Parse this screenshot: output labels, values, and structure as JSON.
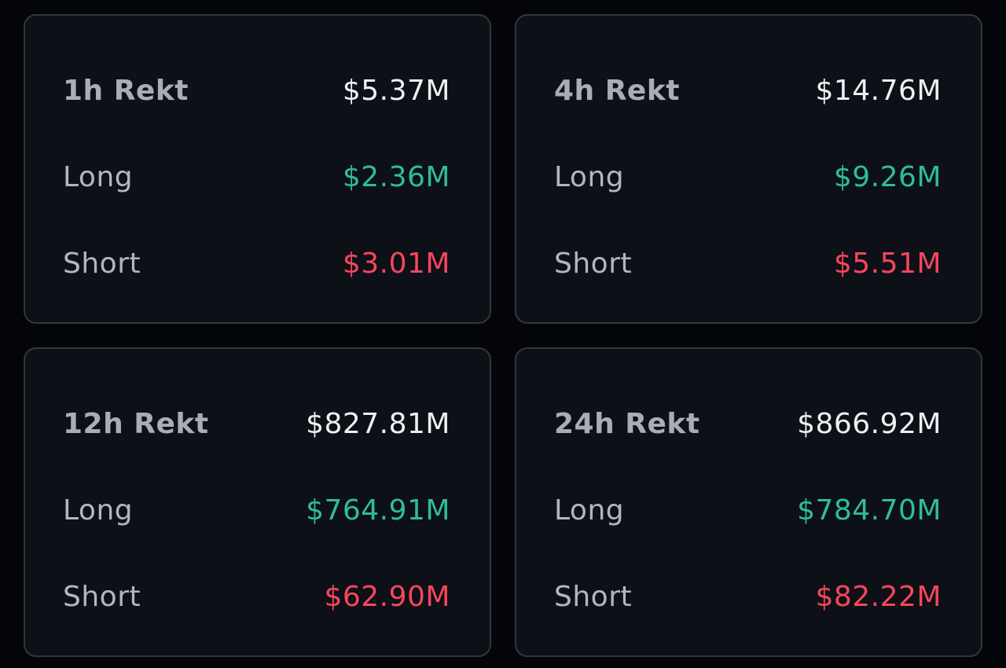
{
  "colors": {
    "background": "#040509",
    "card": "#0d1016",
    "border": "#33363d",
    "label": "#b3b6bd",
    "total": "#eef0f3",
    "long": "#2ebd9b",
    "short": "#f6465d"
  },
  "cards": [
    {
      "title": "1h Rekt",
      "total": "$5.37M",
      "long_label": "Long",
      "long_value": "$2.36M",
      "short_label": "Short",
      "short_value": "$3.01M"
    },
    {
      "title": "4h Rekt",
      "total": "$14.76M",
      "long_label": "Long",
      "long_value": "$9.26M",
      "short_label": "Short",
      "short_value": "$5.51M"
    },
    {
      "title": "12h Rekt",
      "total": "$827.81M",
      "long_label": "Long",
      "long_value": "$764.91M",
      "short_label": "Short",
      "short_value": "$62.90M"
    },
    {
      "title": "24h Rekt",
      "total": "$866.92M",
      "long_label": "Long",
      "long_value": "$784.70M",
      "short_label": "Short",
      "short_value": "$82.22M"
    }
  ]
}
